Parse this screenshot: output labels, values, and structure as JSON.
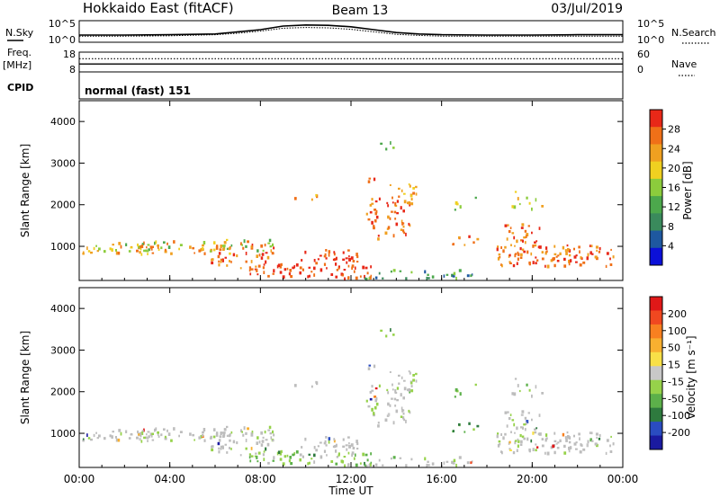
{
  "header": {
    "station": "Hokkaido East (fitACF)",
    "beam": "Beam 13",
    "date": "03/Jul/2019"
  },
  "left_labels": {
    "nsky": "N.Sky",
    "freq": "Freq.",
    "mhz": "[MHz]",
    "cpid": "CPID"
  },
  "right_labels": {
    "nsearch": "N.Search",
    "nave": "Nave"
  },
  "cpid_text": "normal (fast) 151",
  "colors": {
    "power": [
      "#0b10d8",
      "#1e58a0",
      "#3a8a5c",
      "#4ca84c",
      "#8ccc3c",
      "#f0d020",
      "#f0a020",
      "#f07018",
      "#e82818"
    ],
    "velocity": [
      "#1a1aa0",
      "#2a4cc0",
      "#2e7a3e",
      "#5cb04a",
      "#96d24a",
      "#c8c8c8",
      "#f8e048",
      "#f8b030",
      "#f88020",
      "#f04820",
      "#e01818"
    ],
    "ground_scatter": "#bdbdbd"
  },
  "chart_data": [
    {
      "type": "line",
      "panel": "noise",
      "title": "",
      "ylabel_left": "N.Sky",
      "ylabel_right": "N.Search",
      "left_ticks": [
        "10^5",
        "10^0"
      ],
      "right_ticks": [
        "10^5",
        "10^0"
      ],
      "x_hours": [
        0,
        2,
        4,
        6,
        7,
        8,
        9,
        10,
        11,
        12,
        13,
        14,
        15,
        16,
        18,
        20,
        22,
        23,
        24
      ],
      "series": [
        {
          "name": "N.Sky",
          "values": [
            1.5,
            1.5,
            1.6,
            1.8,
            2.4,
            3.0,
            4.0,
            4.3,
            4.2,
            3.8,
            3.0,
            2.2,
            1.8,
            1.6,
            1.5,
            1.5,
            1.6,
            1.6,
            1.6
          ]
        },
        {
          "name": "N.Search",
          "values": [
            1.2,
            1.2,
            1.3,
            1.6,
            2.0,
            2.6,
            3.4,
            3.6,
            3.5,
            3.1,
            2.4,
            1.7,
            1.4,
            1.2,
            1.2,
            1.2,
            1.2,
            1.2,
            1.2
          ]
        }
      ]
    },
    {
      "type": "line",
      "panel": "frequency",
      "ylabel_left": "Freq. [MHz]",
      "ylabel_right": "Nave",
      "left_ticks": [
        "18",
        "8"
      ],
      "right_ticks": [
        "60",
        "0"
      ],
      "ylim": [
        8,
        18
      ],
      "y2lim": [
        0,
        60
      ],
      "series": [
        {
          "name": "Freq. [MHz]",
          "values": [
            12,
            12
          ]
        },
        {
          "name": "Nave",
          "values": [
            40,
            40
          ]
        }
      ]
    },
    {
      "type": "heatmap",
      "panel": "power",
      "xlabel": "",
      "ylabel": "Slant Range [km]",
      "ylim": [
        180,
        4500
      ],
      "y_ticks": [
        "1000",
        "2000",
        "3000",
        "4000"
      ],
      "colorbar_label": "Power [dB]",
      "colorbar_ticks": [
        "28",
        "24",
        "20",
        "16",
        "12",
        "8",
        "4"
      ]
    },
    {
      "type": "heatmap",
      "panel": "velocity",
      "xlabel": "Time UT",
      "ylabel": "Slant Range [km]",
      "ylim": [
        180,
        4500
      ],
      "y_ticks": [
        "1000",
        "2000",
        "3000",
        "4000"
      ],
      "x_ticks": [
        "00:00",
        "04:00",
        "08:00",
        "12:00",
        "16:00",
        "20:00",
        "00:00"
      ],
      "colorbar_label": "Velocity [m s⁻¹]",
      "colorbar_ticks": [
        "200",
        "100",
        "50",
        "15",
        "-15",
        "-50",
        "-100",
        "-200"
      ]
    }
  ]
}
